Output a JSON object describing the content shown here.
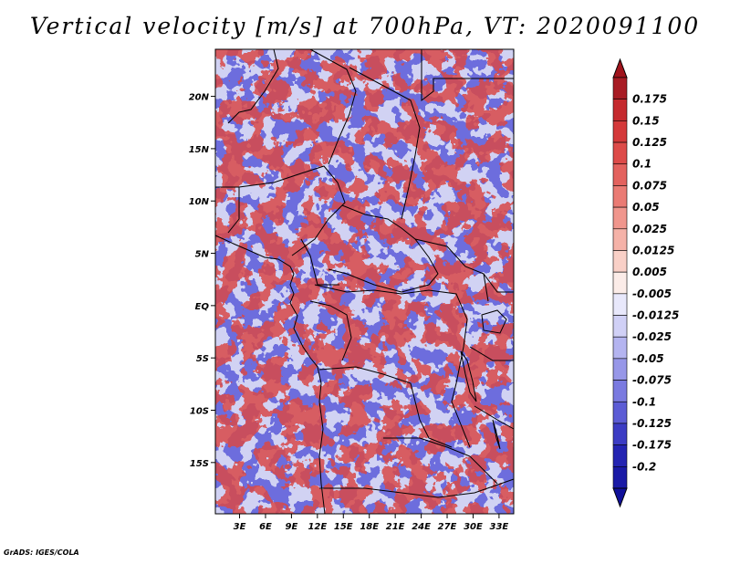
{
  "chart_data": {
    "type": "heatmap",
    "title": "Vertical velocity [m/s] at 700hPa, VT: 2020091100",
    "x_tick_labels": [
      "3E",
      "6E",
      "9E",
      "12E",
      "15E",
      "18E",
      "21E",
      "24E",
      "27E",
      "30E",
      "33E"
    ],
    "y_tick_labels": [
      "20N",
      "15N",
      "10N",
      "5N",
      "EQ",
      "5S",
      "10S",
      "15S"
    ],
    "lon_ticks": [
      3,
      6,
      9,
      12,
      15,
      18,
      21,
      24,
      27,
      30,
      33
    ],
    "lat_ticks": [
      20,
      15,
      10,
      5,
      0,
      -5,
      -10,
      -15
    ],
    "lon_range": [
      0.2,
      34.7
    ],
    "lat_range": [
      -19.9,
      24.5
    ],
    "colorbar": {
      "labels": [
        "0.175",
        "0.15",
        "0.125",
        "0.1",
        "0.075",
        "0.05",
        "0.025",
        "0.0125",
        "0.005",
        "-0.005",
        "-0.0125",
        "-0.025",
        "-0.05",
        "-0.075",
        "-0.1",
        "-0.125",
        "-0.175",
        "-0.2"
      ],
      "colors": [
        "#a81c24",
        "#c52a2e",
        "#d4393a",
        "#dd4b49",
        "#e3625e",
        "#ea7b74",
        "#f0968d",
        "#f5b2a8",
        "#f9d0c7",
        "#fbece8",
        "#e8e8fb",
        "#d0d0f6",
        "#b4b4f0",
        "#9797e8",
        "#7a7ae0",
        "#5c5cd5",
        "#3c3cc4",
        "#2424b2",
        "#1a1aa6"
      ],
      "max_color": "#a0141c",
      "min_color": "#10109a"
    }
  },
  "credit": "GrADS: IGES/COLA"
}
